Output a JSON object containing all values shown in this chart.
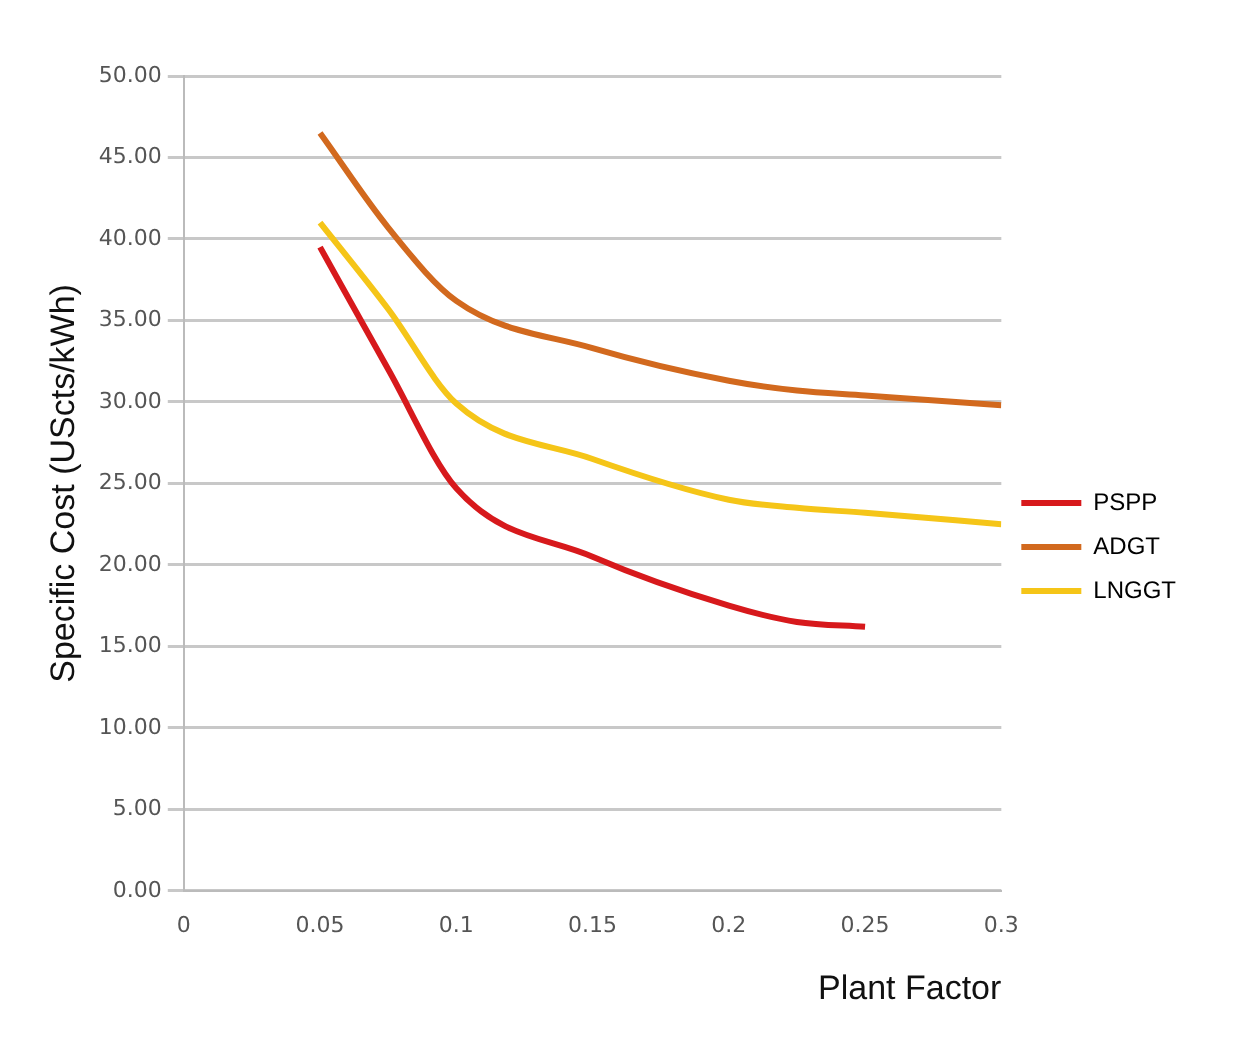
{
  "chart_data": {
    "type": "line",
    "xlabel": "Plant Factor",
    "ylabel": "Specific Cost (UScts/kWh)",
    "xlim": [
      0,
      0.3
    ],
    "xticks": [
      0,
      0.05,
      0.1,
      0.15,
      0.2,
      0.25,
      0.3
    ],
    "ylim": [
      0,
      50
    ],
    "yticks": [
      {
        "value": 0,
        "label": "0.00"
      },
      {
        "value": 5,
        "label": "5.00"
      },
      {
        "value": 10,
        "label": "10.00"
      },
      {
        "value": 15,
        "label": "15.00"
      },
      {
        "value": 20,
        "label": "20.00"
      },
      {
        "value": 25,
        "label": "25.00"
      },
      {
        "value": 30,
        "label": "30.00"
      },
      {
        "value": 35,
        "label": "35.00"
      },
      {
        "value": 40,
        "label": "40.00"
      },
      {
        "value": 45,
        "label": "45.00"
      },
      {
        "value": 50,
        "label": "50.00"
      }
    ],
    "grid": "y",
    "legend": "right",
    "marker": "none",
    "line_style": "solid",
    "series": [
      {
        "name": "PSPP",
        "color": "#d7191c",
        "x": [
          0.05,
          0.075,
          0.1,
          0.15,
          0.2,
          0.225,
          0.25
        ],
        "values": [
          39.5,
          32,
          24.7,
          20.5,
          17.5,
          16.5,
          16.2
        ]
      },
      {
        "name": "ADGT",
        "color": "#d2691e",
        "x": [
          0.05,
          0.075,
          0.1,
          0.15,
          0.2,
          0.225,
          0.25,
          0.3
        ],
        "values": [
          46.5,
          40.7,
          36.2,
          33.3,
          31.3,
          30.7,
          30.4,
          29.8
        ]
      },
      {
        "name": "LNGGT",
        "color": "#f5c518",
        "x": [
          0.05,
          0.075,
          0.1,
          0.15,
          0.2,
          0.225,
          0.25,
          0.3
        ],
        "values": [
          41,
          35.7,
          29.9,
          26.5,
          24,
          23.5,
          23.2,
          22.5
        ]
      }
    ]
  }
}
